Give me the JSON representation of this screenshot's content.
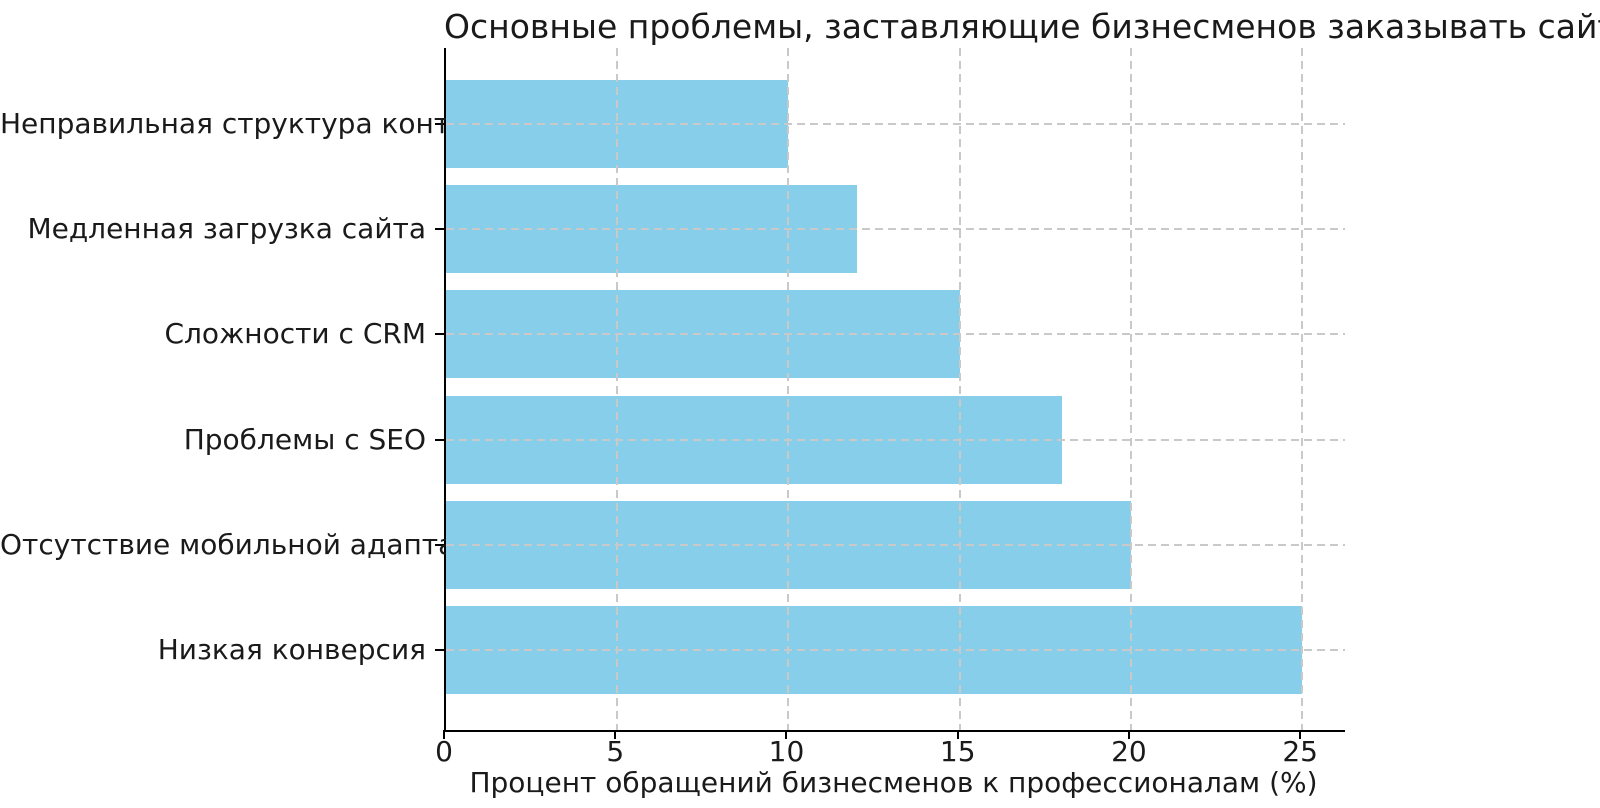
{
  "chart_data": {
    "type": "bar",
    "orientation": "horizontal",
    "title": "Основные проблемы, заставляющие бизнесменов заказывать сайт у профессионалов",
    "xlabel": "Процент обращений бизнесменов к профессионалам (%)",
    "ylabel": "",
    "categories": [
      "Неправильная структура контента",
      "Медленная загрузка сайта",
      "Сложности с CRM",
      "Проблемы с SEO",
      "Отсутствие мобильной адаптации",
      "Низкая конверсия"
    ],
    "values": [
      10,
      12,
      15,
      18,
      20,
      25
    ],
    "xticks": [
      "0",
      "5",
      "10",
      "15",
      "20",
      "25"
    ],
    "xtick_values": [
      0,
      5,
      10,
      15,
      20,
      25
    ],
    "xlim": [
      0,
      26.25
    ],
    "bar_color": "#87CEEB",
    "grid": true,
    "grid_color": "#c9c9c9",
    "grid_style": "dashed",
    "legend": "none",
    "spines": [
      "left",
      "bottom"
    ]
  }
}
